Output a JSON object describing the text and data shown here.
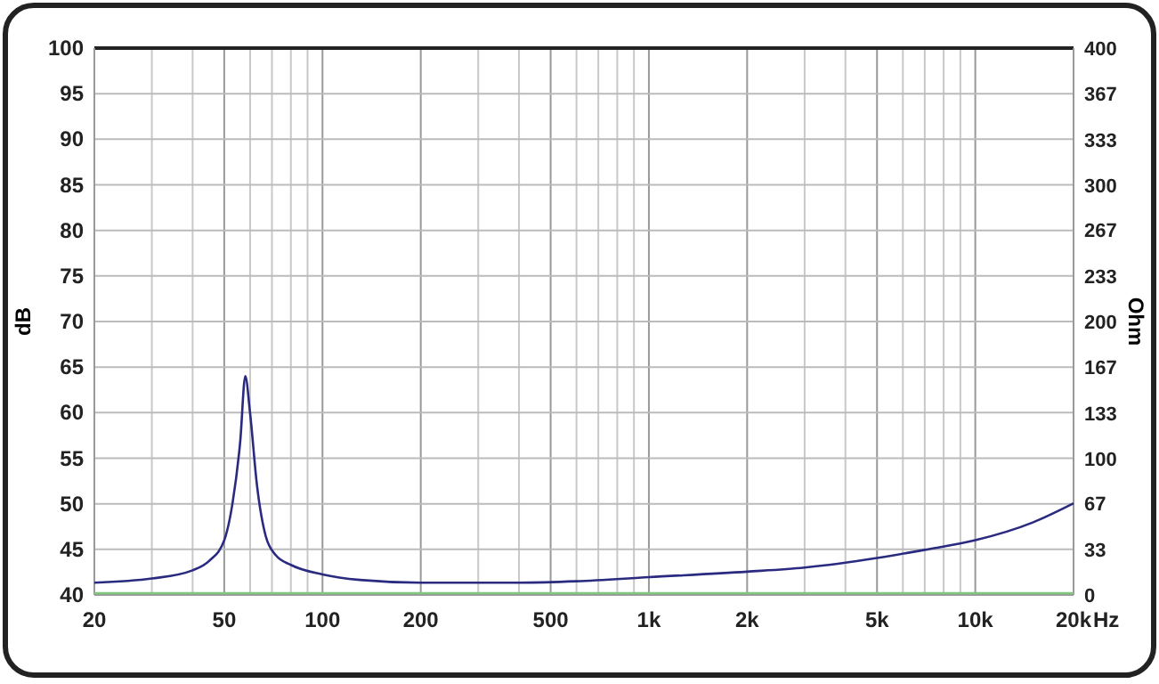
{
  "chart_data": {
    "type": "line",
    "xlabel": "Hz",
    "ylabel": "dB",
    "y2label": "Ohm",
    "log": "x",
    "grid": true,
    "line_style": "solid",
    "xlim": [
      20,
      20000
    ],
    "xticks": [
      20,
      {
        "value": 30,
        "label": null
      },
      {
        "value": 40,
        "label": null
      },
      50,
      {
        "value": 60,
        "label": null
      },
      {
        "value": 70,
        "label": null
      },
      {
        "value": 80,
        "label": null
      },
      {
        "value": 90,
        "label": null
      },
      100,
      200,
      {
        "value": 300,
        "label": null
      },
      {
        "value": 400,
        "label": null
      },
      500,
      {
        "value": 600,
        "label": null
      },
      {
        "value": 700,
        "label": null
      },
      {
        "value": 800,
        "label": null
      },
      {
        "value": 900,
        "label": null
      },
      {
        "value": 1000,
        "label": "1k"
      },
      {
        "value": 2000,
        "label": "2k"
      },
      {
        "value": 3000,
        "label": null
      },
      {
        "value": 4000,
        "label": null
      },
      {
        "value": 5000,
        "label": "5k"
      },
      {
        "value": 6000,
        "label": null
      },
      {
        "value": 7000,
        "label": null
      },
      {
        "value": 8000,
        "label": null
      },
      {
        "value": 9000,
        "label": null
      },
      {
        "value": 10000,
        "label": "10k"
      },
      {
        "value": 20000,
        "label": "20k"
      }
    ],
    "ylim": [
      40,
      100
    ],
    "yticks": [
      40,
      45,
      50,
      55,
      60,
      65,
      70,
      75,
      80,
      85,
      90,
      95,
      100
    ],
    "y2lim": [
      0,
      400
    ],
    "y2ticks": [
      0,
      33,
      67,
      100,
      133,
      167,
      200,
      233,
      267,
      300,
      333,
      367,
      400
    ],
    "series": [
      {
        "color": "#7fc97f",
        "axis": "y",
        "x": [
          20,
          20000
        ],
        "values": [
          40.2,
          40.2
        ]
      },
      {
        "color": "#2a2a80",
        "axis": "y2",
        "x": [
          20,
          30,
          40,
          45,
          50,
          53,
          56,
          58,
          60,
          63,
          67,
          72,
          80,
          100,
          130,
          200,
          300,
          400,
          600,
          1000,
          2000,
          3000,
          5000,
          7000,
          10000,
          15000,
          20000
        ],
        "values": [
          9,
          12,
          18,
          25,
          40,
          67,
          113,
          160,
          133,
          80,
          43,
          29,
          22,
          15,
          11,
          9,
          9,
          9,
          10,
          13,
          17,
          20,
          27,
          33,
          40,
          53,
          67
        ]
      }
    ]
  }
}
